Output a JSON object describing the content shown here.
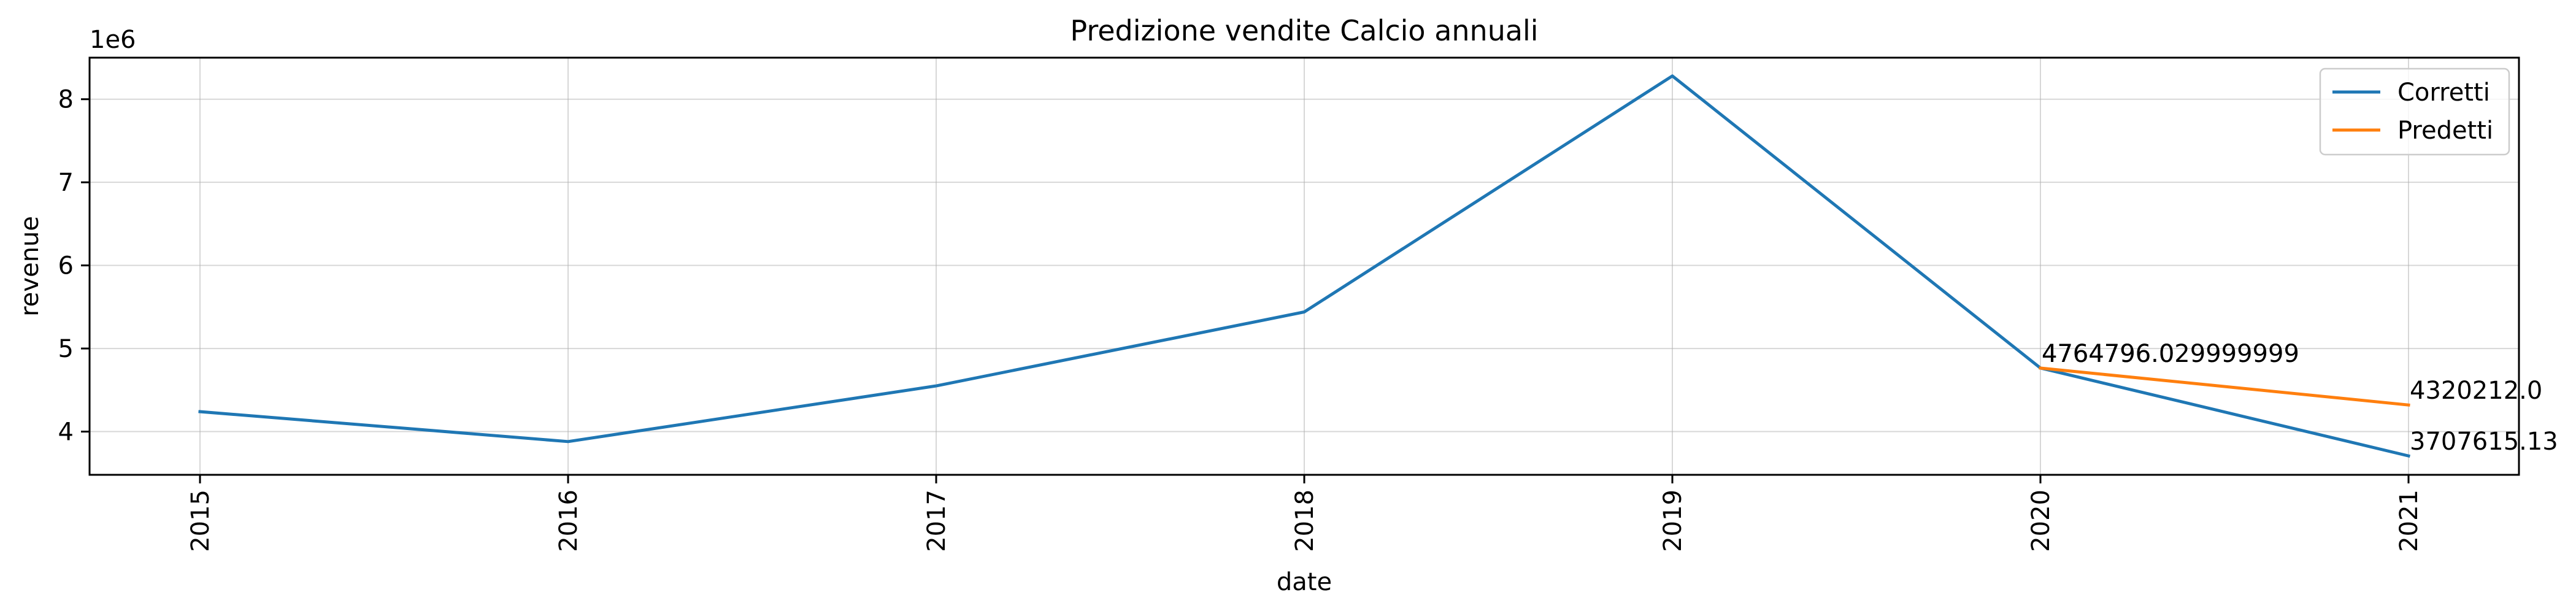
{
  "chart_data": {
    "type": "line",
    "title": "Predizione vendite Calcio annuali",
    "xlabel": "date",
    "ylabel": "revenue",
    "y_offset_label": "1e6",
    "categories": [
      "2015",
      "2016",
      "2017",
      "2018",
      "2019",
      "2020",
      "2021"
    ],
    "xlim": [
      2014.7,
      2021.3
    ],
    "ylim": [
      3.48,
      8.5
    ],
    "y_ticks": [
      4,
      5,
      6,
      7,
      8
    ],
    "y_tick_labels": [
      "4",
      "5",
      "6",
      "7",
      "8"
    ],
    "grid": true,
    "legend_position": "top-right",
    "series": [
      {
        "name": "Corretti",
        "color": "#1f77b4",
        "x": [
          2015,
          2016,
          2017,
          2018,
          2019,
          2020,
          2021
        ],
        "values": [
          4.24,
          3.88,
          4.55,
          5.44,
          8.28,
          4.764796,
          3.707615
        ]
      },
      {
        "name": "Predetti",
        "color": "#ff7f0e",
        "x": [
          2020,
          2021
        ],
        "values": [
          4.764796,
          4.320212
        ]
      }
    ],
    "annotations": [
      {
        "x": 2020,
        "y": 4.764796,
        "text": "4764796.029999999"
      },
      {
        "x": 2020,
        "y": 4.764796,
        "text": "4764796.0"
      },
      {
        "x": 2021,
        "y": 4.320212,
        "text": "4320212.0"
      },
      {
        "x": 2021,
        "y": 3.707615,
        "text": "3707615.13"
      }
    ]
  }
}
